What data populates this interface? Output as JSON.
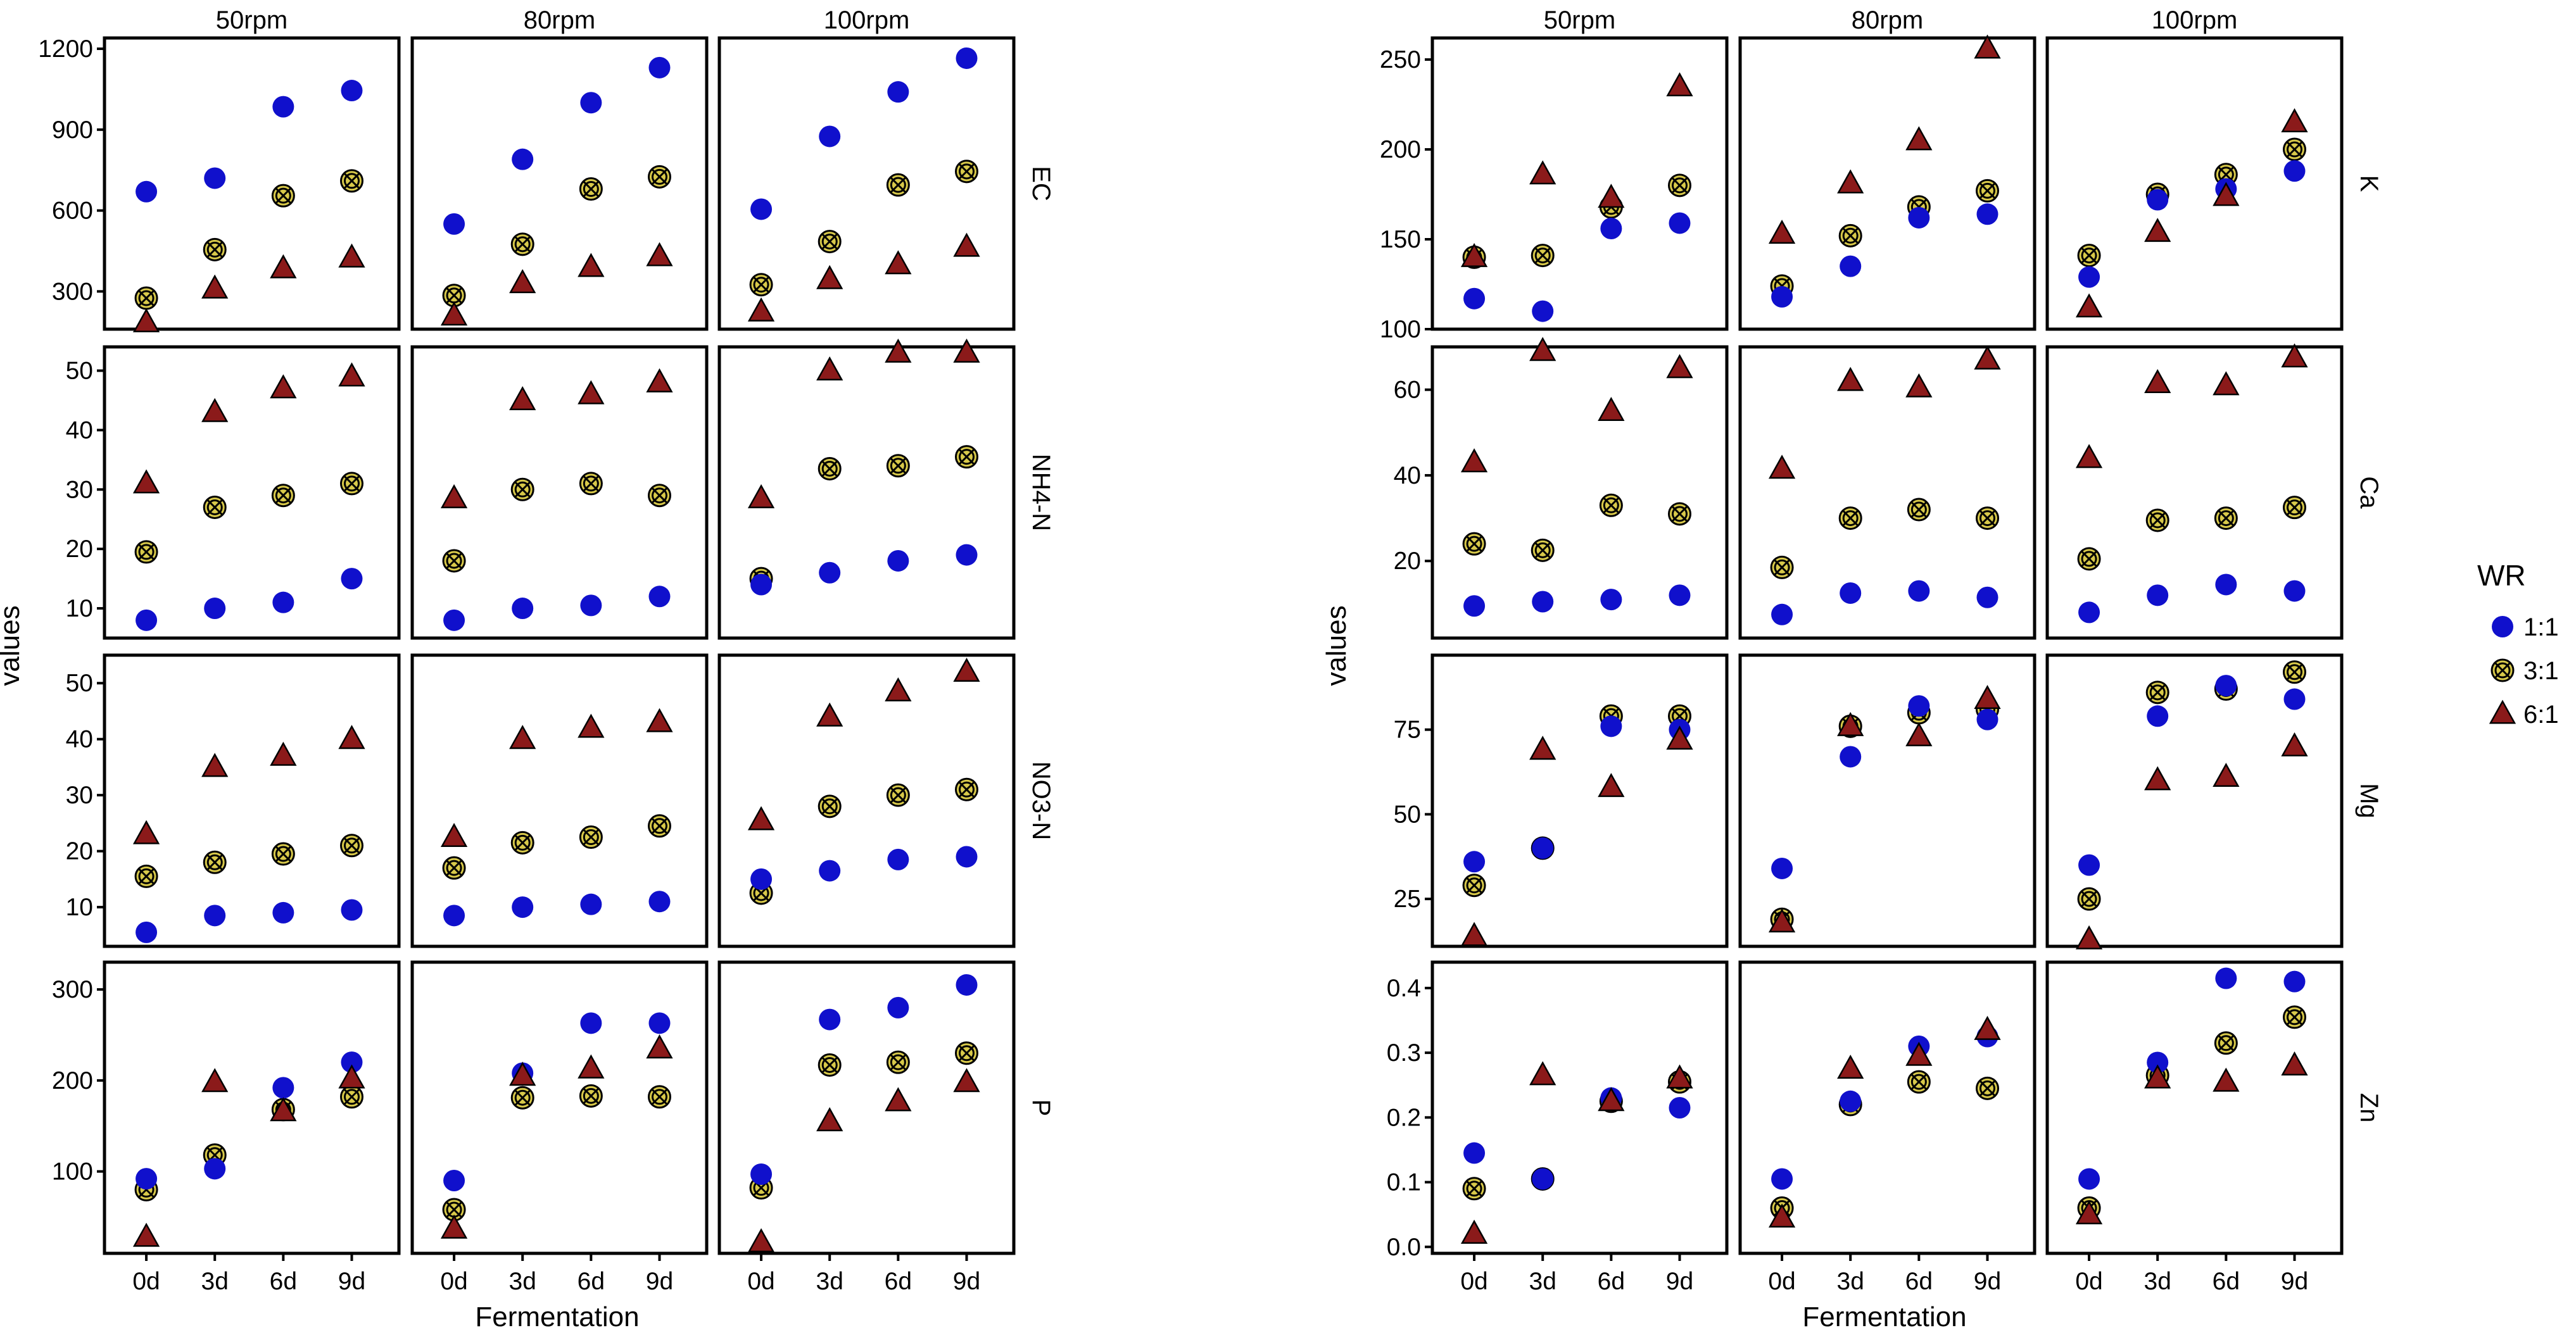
{
  "legend": {
    "title": "WR",
    "entries": [
      {
        "label": "1:1",
        "color": "#1010CC",
        "shape": "circle"
      },
      {
        "label": "3:1",
        "color": "#D8C94A",
        "shape": "circle-cross"
      },
      {
        "label": "6:1",
        "color": "#8B1A1A",
        "shape": "triangle"
      }
    ]
  },
  "chart_data": [
    {
      "type": "scatter",
      "xlabel": "Fermentation",
      "ylabel": "values",
      "columns": [
        "50rpm",
        "80rpm",
        "100rpm"
      ],
      "categories": [
        "0d",
        "3d",
        "6d",
        "9d"
      ],
      "rows": [
        {
          "name": "EC",
          "ylim": [
            160,
            1240
          ],
          "yticks": [
            300,
            600,
            900,
            1200
          ],
          "panels": [
            {
              "1:1": [
                670,
                720,
                985,
                1045
              ],
              "3:1": [
                275,
                455,
                655,
                710
              ],
              "6:1": [
                185,
                310,
                385,
                425
              ]
            },
            {
              "1:1": [
                550,
                790,
                1000,
                1130
              ],
              "3:1": [
                285,
                475,
                680,
                725
              ],
              "6:1": [
                210,
                330,
                390,
                430
              ]
            },
            {
              "1:1": [
                605,
                875,
                1040,
                1165
              ],
              "3:1": [
                325,
                485,
                695,
                745
              ],
              "6:1": [
                225,
                345,
                400,
                465
              ]
            }
          ]
        },
        {
          "name": "NH4-N",
          "ylim": [
            5,
            54
          ],
          "yticks": [
            10,
            20,
            30,
            40,
            50
          ],
          "panels": [
            {
              "1:1": [
                8,
                10,
                11,
                15
              ],
              "3:1": [
                19.5,
                27,
                29,
                31
              ],
              "6:1": [
                31,
                43,
                47,
                49
              ]
            },
            {
              "1:1": [
                8,
                10,
                10.5,
                12
              ],
              "3:1": [
                18,
                30,
                31,
                29
              ],
              "6:1": [
                28.5,
                45,
                46,
                48
              ]
            },
            {
              "1:1": [
                14,
                16,
                18,
                19
              ],
              "3:1": [
                15,
                33.5,
                34,
                35.5
              ],
              "6:1": [
                28.5,
                50,
                53,
                53
              ]
            }
          ]
        },
        {
          "name": "NO3-N",
          "ylim": [
            3,
            55
          ],
          "yticks": [
            10,
            20,
            30,
            40,
            50
          ],
          "panels": [
            {
              "1:1": [
                5.5,
                8.5,
                9,
                9.5
              ],
              "3:1": [
                15.5,
                18,
                19.5,
                21
              ],
              "6:1": [
                23,
                35,
                37,
                40
              ]
            },
            {
              "1:1": [
                8.5,
                10,
                10.5,
                11
              ],
              "3:1": [
                17,
                21.5,
                22.5,
                24.5
              ],
              "6:1": [
                22.5,
                40,
                42,
                43
              ]
            },
            {
              "1:1": [
                15,
                16.5,
                18.5,
                19
              ],
              "3:1": [
                12.5,
                28,
                30,
                31
              ],
              "6:1": [
                25.5,
                44,
                48.5,
                52
              ]
            }
          ]
        },
        {
          "name": "P",
          "ylim": [
            10,
            330
          ],
          "yticks": [
            100,
            200,
            300
          ],
          "panels": [
            {
              "1:1": [
                92,
                103,
                192,
                220
              ],
              "3:1": [
                80,
                118,
                168,
                182
              ],
              "6:1": [
                28,
                198,
                166,
                202
              ]
            },
            {
              "1:1": [
                90,
                208,
                263,
                263
              ],
              "3:1": [
                58,
                181,
                183,
                182
              ],
              "6:1": [
                37,
                205,
                213,
                235
              ]
            },
            {
              "1:1": [
                97,
                267,
                280,
                305
              ],
              "3:1": [
                82,
                217,
                220,
                230
              ],
              "6:1": [
                22,
                155,
                177,
                198
              ]
            }
          ]
        }
      ]
    },
    {
      "type": "scatter",
      "xlabel": "Fermentation",
      "ylabel": "values",
      "columns": [
        "50rpm",
        "80rpm",
        "100rpm"
      ],
      "categories": [
        "0d",
        "3d",
        "6d",
        "9d"
      ],
      "rows": [
        {
          "name": "K",
          "ylim": [
            100,
            262
          ],
          "yticks": [
            100,
            150,
            200,
            250
          ],
          "panels": [
            {
              "1:1": [
                117,
                110,
                156,
                159
              ],
              "3:1": [
                140,
                141,
                168,
                180
              ],
              "6:1": [
                140,
                186,
                173,
                235
              ]
            },
            {
              "1:1": [
                118,
                135,
                162,
                164
              ],
              "3:1": [
                124,
                152,
                168,
                177
              ],
              "6:1": [
                153,
                181,
                205,
                256
              ]
            },
            {
              "1:1": [
                129,
                172,
                178,
                188
              ],
              "3:1": [
                141,
                175,
                186,
                200
              ],
              "6:1": [
                112,
                154,
                174,
                215
              ]
            }
          ]
        },
        {
          "name": "Ca",
          "ylim": [
            2,
            70
          ],
          "yticks": [
            20,
            40,
            60
          ],
          "panels": [
            {
              "1:1": [
                9.5,
                10.5,
                11,
                12
              ],
              "3:1": [
                24,
                22.5,
                33,
                31
              ],
              "6:1": [
                43,
                69,
                55,
                65
              ]
            },
            {
              "1:1": [
                7.5,
                12.5,
                13,
                11.5
              ],
              "3:1": [
                18.5,
                30,
                32,
                30
              ],
              "6:1": [
                41.5,
                62,
                60.5,
                67
              ]
            },
            {
              "1:1": [
                8,
                12,
                14.5,
                13
              ],
              "3:1": [
                20.5,
                29.5,
                30,
                32.5
              ],
              "6:1": [
                44,
                61.5,
                61,
                67.5
              ]
            }
          ]
        },
        {
          "name": "Mg",
          "ylim": [
            11,
            97
          ],
          "yticks": [
            25,
            50,
            75
          ],
          "panels": [
            {
              "1:1": [
                36,
                40,
                76,
                75
              ],
              "3:1": [
                29,
                40,
                79,
                79
              ],
              "6:1": [
                14,
                69,
                58,
                72
              ]
            },
            {
              "1:1": [
                34,
                67,
                82,
                78
              ],
              "3:1": [
                19,
                76,
                80,
                81
              ],
              "6:1": [
                18,
                76,
                73,
                84
              ]
            },
            {
              "1:1": [
                35,
                79,
                88,
                84
              ],
              "3:1": [
                25,
                86,
                87,
                92
              ],
              "6:1": [
                13,
                60,
                61,
                70
              ]
            }
          ]
        },
        {
          "name": "Zn",
          "ylim": [
            -0.01,
            0.44
          ],
          "yticks": [
            0.0,
            0.1,
            0.2,
            0.3,
            0.4
          ],
          "panels": [
            {
              "1:1": [
                0.145,
                0.105,
                0.23,
                0.215
              ],
              "3:1": [
                0.09,
                0.105,
                0.225,
                0.255
              ],
              "6:1": [
                0.02,
                0.265,
                0.225,
                0.26
              ]
            },
            {
              "1:1": [
                0.105,
                0.225,
                0.31,
                0.325
              ],
              "3:1": [
                0.06,
                0.22,
                0.255,
                0.245
              ],
              "6:1": [
                0.045,
                0.275,
                0.295,
                0.335
              ]
            },
            {
              "1:1": [
                0.105,
                0.285,
                0.415,
                0.41
              ],
              "3:1": [
                0.06,
                0.265,
                0.315,
                0.355
              ],
              "6:1": [
                0.05,
                0.26,
                0.255,
                0.28
              ]
            }
          ]
        }
      ]
    }
  ]
}
